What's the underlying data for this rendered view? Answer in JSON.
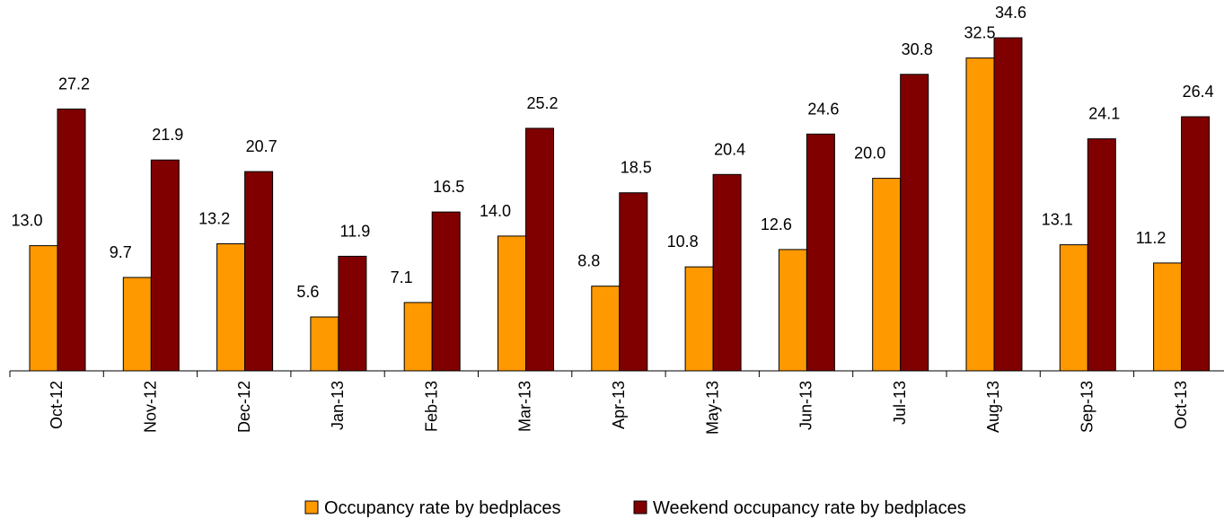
{
  "chart_data": {
    "type": "bar",
    "categories": [
      "Oct-12",
      "Nov-12",
      "Dec-12",
      "Jan-13",
      "Feb-13",
      "Mar-13",
      "Apr-13",
      "May-13",
      "Jun-13",
      "Jul-13",
      "Aug-13",
      "Sep-13",
      "Oct-13"
    ],
    "series": [
      {
        "name": "Occupancy rate by bedplaces",
        "color": "#FF9900",
        "values": [
          13.0,
          9.7,
          13.2,
          5.6,
          7.1,
          14.0,
          8.8,
          10.8,
          12.6,
          20.0,
          32.5,
          13.1,
          11.2
        ],
        "labels": [
          "13.0",
          "9.7",
          "13.2",
          "5.6",
          "7.1",
          "14.0",
          "8.8",
          "10.8",
          "12.6",
          "20.0",
          "32.5",
          "13.1",
          "11.2"
        ]
      },
      {
        "name": "Weekend occupancy rate by bedplaces",
        "color": "#800000",
        "values": [
          27.2,
          21.9,
          20.7,
          11.9,
          16.5,
          25.2,
          18.5,
          20.4,
          24.6,
          30.8,
          34.6,
          24.1,
          26.4
        ],
        "labels": [
          "27.2",
          "21.9",
          "20.7",
          "11.9",
          "16.5",
          "25.2",
          "18.5",
          "20.4",
          "24.6",
          "30.8",
          "34.6",
          "24.1",
          "26.4"
        ]
      }
    ],
    "title": "",
    "xlabel": "",
    "ylabel": "",
    "ylim": [
      0,
      34.6
    ],
    "grid": false,
    "legend": "bottom"
  }
}
